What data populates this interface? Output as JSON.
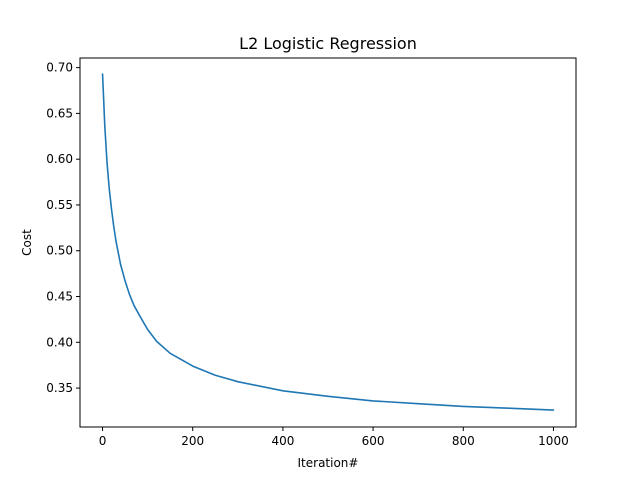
{
  "chart_data": {
    "type": "line",
    "title": "L2 Logistic Regression",
    "xlabel": "Iteration#",
    "ylabel": "Cost",
    "xlim": [
      -50,
      1050
    ],
    "ylim": [
      0.3075,
      0.7105
    ],
    "xticks": [
      0,
      200,
      400,
      600,
      800,
      1000
    ],
    "yticks": [
      0.35,
      0.4,
      0.45,
      0.5,
      0.55,
      0.6,
      0.65,
      0.7
    ],
    "ytick_labels": [
      "0.35",
      "0.40",
      "0.45",
      "0.50",
      "0.55",
      "0.60",
      "0.65",
      "0.70"
    ],
    "grid": false,
    "line_color": "#1f77b4",
    "series": [
      {
        "x": [
          0,
          5,
          10,
          15,
          20,
          25,
          30,
          40,
          50,
          60,
          70,
          80,
          100,
          120,
          150,
          200,
          250,
          300,
          400,
          500,
          600,
          700,
          800,
          900,
          1000
        ],
        "y": [
          0.693,
          0.636,
          0.596,
          0.567,
          0.545,
          0.526,
          0.51,
          0.485,
          0.467,
          0.452,
          0.44,
          0.431,
          0.414,
          0.401,
          0.388,
          0.374,
          0.364,
          0.357,
          0.347,
          0.341,
          0.336,
          0.333,
          0.33,
          0.328,
          0.326
        ]
      }
    ]
  }
}
